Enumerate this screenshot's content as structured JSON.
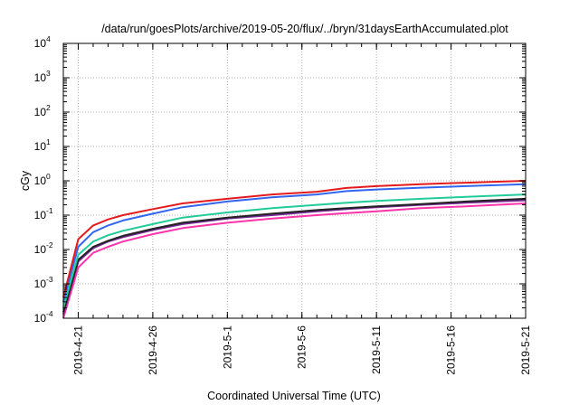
{
  "chart_data": {
    "type": "line",
    "title": "/data/run/goesPlots/archive/2019-05-20/flux/../bryn/31daysEarthAccumulated.plot",
    "xlabel": "Coordinated Universal Time (UTC)",
    "ylabel": "cGy",
    "yscale": "log",
    "ylim": [
      0.0001,
      10000
    ],
    "y_ticks": [
      {
        "base": "10",
        "exp": "-4",
        "value": 0.0001
      },
      {
        "base": "10",
        "exp": "-3",
        "value": 0.001
      },
      {
        "base": "10",
        "exp": "-2",
        "value": 0.01
      },
      {
        "base": "10",
        "exp": "-1",
        "value": 0.1
      },
      {
        "base": "10",
        "exp": "0",
        "value": 1
      },
      {
        "base": "10",
        "exp": "1",
        "value": 10
      },
      {
        "base": "10",
        "exp": "2",
        "value": 100
      },
      {
        "base": "10",
        "exp": "3",
        "value": 1000
      },
      {
        "base": "10",
        "exp": "4",
        "value": 10000
      }
    ],
    "xlim": [
      "2019-04-20",
      "2019-05-21"
    ],
    "x_ticks": [
      "2019-4-21",
      "2019-4-26",
      "2019-5-1",
      "2019-5-6",
      "2019-5-11",
      "2019-5-16",
      "2019-5-21"
    ],
    "x": [
      "2019-04-20",
      "2019-04-21",
      "2019-04-22",
      "2019-04-23",
      "2019-04-24",
      "2019-04-26",
      "2019-04-28",
      "2019-05-01",
      "2019-05-04",
      "2019-05-07",
      "2019-05-09",
      "2019-05-11",
      "2019-05-14",
      "2019-05-17",
      "2019-05-21"
    ],
    "grid": true,
    "series": [
      {
        "color": "#e41a1c",
        "values": [
          0.0004,
          0.02,
          0.05,
          0.075,
          0.1,
          0.15,
          0.22,
          0.3,
          0.4,
          0.48,
          0.62,
          0.7,
          0.8,
          0.88,
          1.0
        ]
      },
      {
        "color": "#3366ee",
        "values": [
          0.0003,
          0.012,
          0.032,
          0.05,
          0.07,
          0.11,
          0.17,
          0.25,
          0.33,
          0.4,
          0.5,
          0.56,
          0.63,
          0.7,
          0.8
        ]
      },
      {
        "color": "#22cc99",
        "values": [
          0.0002,
          0.007,
          0.017,
          0.026,
          0.035,
          0.055,
          0.085,
          0.12,
          0.16,
          0.2,
          0.23,
          0.26,
          0.3,
          0.34,
          0.4
        ]
      },
      {
        "color": "#222222",
        "values": [
          0.00015,
          0.005,
          0.012,
          0.018,
          0.025,
          0.04,
          0.06,
          0.085,
          0.11,
          0.14,
          0.16,
          0.18,
          0.21,
          0.25,
          0.3
        ]
      },
      {
        "color": "#7a2a9a",
        "values": [
          0.00013,
          0.0045,
          0.011,
          0.017,
          0.023,
          0.037,
          0.055,
          0.08,
          0.1,
          0.13,
          0.15,
          0.17,
          0.2,
          0.23,
          0.27
        ]
      },
      {
        "color": "#ff33aa",
        "values": [
          0.0001,
          0.003,
          0.008,
          0.012,
          0.017,
          0.028,
          0.042,
          0.06,
          0.08,
          0.1,
          0.115,
          0.13,
          0.16,
          0.18,
          0.22
        ]
      }
    ]
  }
}
